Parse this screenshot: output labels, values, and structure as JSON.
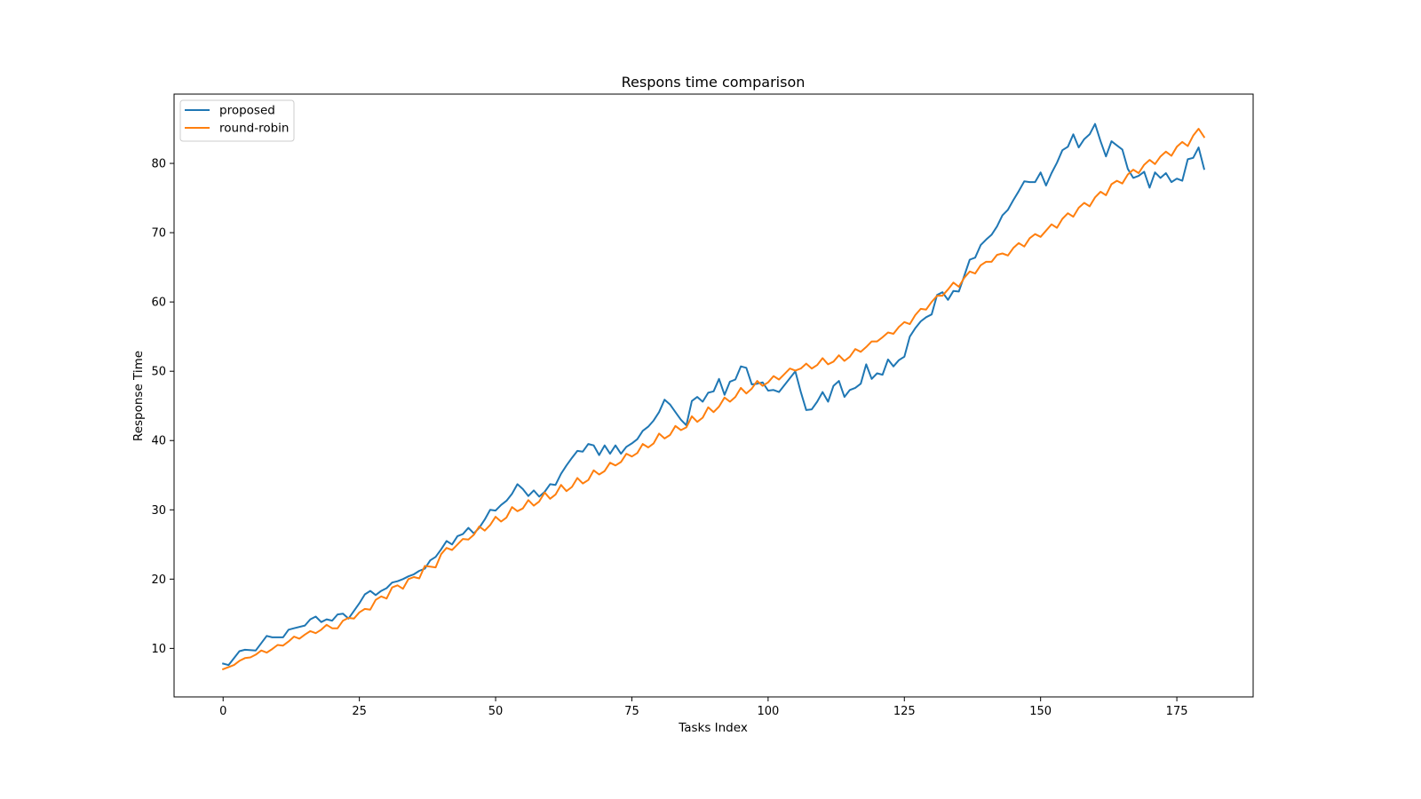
{
  "chart_data": {
    "type": "line",
    "title": "Respons time comparison",
    "xlabel": "Tasks Index",
    "ylabel": "Response Time",
    "xlim": [
      -9,
      189
    ],
    "ylim": [
      3,
      90
    ],
    "xticks": [
      0,
      25,
      50,
      75,
      100,
      125,
      150,
      175
    ],
    "yticks": [
      10,
      20,
      30,
      40,
      50,
      60,
      70,
      80
    ],
    "grid": false,
    "legend": "top-left",
    "series": [
      {
        "name": "proposed",
        "color": "#1f77b4",
        "x": [
          0,
          1,
          3,
          4,
          6,
          8,
          9,
          11,
          12,
          13,
          15,
          16,
          17,
          18,
          19,
          20,
          21,
          22,
          23,
          25,
          26,
          27,
          28,
          29,
          30,
          31,
          32,
          33,
          34,
          35,
          36,
          37,
          38,
          39,
          40,
          41,
          42,
          43,
          44,
          45,
          46,
          47,
          48,
          49,
          50,
          51,
          52,
          53,
          54,
          55,
          56,
          57,
          58,
          59,
          60,
          61,
          62,
          63,
          64,
          65,
          66,
          67,
          68,
          69,
          70,
          71,
          72,
          73,
          74,
          75,
          76,
          77,
          78,
          79,
          80,
          81,
          82,
          83,
          84,
          85,
          86,
          87,
          88,
          89,
          90,
          91,
          92,
          93,
          94,
          95,
          96,
          97,
          98,
          99,
          100,
          101,
          102,
          103,
          104,
          105,
          106,
          107,
          108,
          109,
          110,
          111,
          112,
          113,
          114,
          115,
          116,
          117,
          118,
          119,
          120,
          121,
          122,
          123,
          124,
          125,
          126,
          127,
          128,
          129,
          130,
          131,
          132,
          133,
          134,
          135,
          136,
          137,
          138,
          139,
          140,
          141,
          142,
          143,
          144,
          145,
          146,
          147,
          148,
          149,
          150,
          151,
          152,
          153,
          154,
          155,
          156,
          157,
          158,
          159,
          160,
          161,
          162,
          163,
          164,
          165,
          166,
          167,
          168,
          169,
          170,
          171,
          172,
          173,
          174,
          175,
          176,
          177,
          178,
          179,
          180
        ],
        "values": [
          7.8,
          7.6,
          9.6,
          9.8,
          9.7,
          11.8,
          11.6,
          11.6,
          12.7,
          12.9,
          13.3,
          14.2,
          14.6,
          13.8,
          14.2,
          14.0,
          14.9,
          15.0,
          14.3,
          16.5,
          17.8,
          18.3,
          17.7,
          18.3,
          18.7,
          19.5,
          19.7,
          20.0,
          20.4,
          20.7,
          21.2,
          21.5,
          22.7,
          23.2,
          24.3,
          25.5,
          25.0,
          26.2,
          26.5,
          27.4,
          26.6,
          27.4,
          28.6,
          30.0,
          29.9,
          30.7,
          31.3,
          32.3,
          33.7,
          33.0,
          32.0,
          32.8,
          31.9,
          32.6,
          33.7,
          33.6,
          35.2,
          36.4,
          37.5,
          38.5,
          38.4,
          39.5,
          39.3,
          37.9,
          39.3,
          38.1,
          39.3,
          38.1,
          39.1,
          39.6,
          40.2,
          41.4,
          42.0,
          42.9,
          44.1,
          45.9,
          45.2,
          44.1,
          43.0,
          42.2,
          45.7,
          46.3,
          45.6,
          46.9,
          47.1,
          48.9,
          46.6,
          48.5,
          48.8,
          50.7,
          50.5,
          48.1,
          48.2,
          48.4,
          47.2,
          47.3,
          47.0,
          48.0,
          49.0,
          50.0,
          47.0,
          44.4,
          44.5,
          45.6,
          47.0,
          45.6,
          47.9,
          48.6,
          46.3,
          47.3,
          47.6,
          48.2,
          51.0,
          48.9,
          49.7,
          49.5,
          51.7,
          50.7,
          51.6,
          52.1,
          55.0,
          56.2,
          57.2,
          57.8,
          58.2,
          61.0,
          61.4,
          60.3,
          61.6,
          61.5,
          63.8,
          66.1,
          66.4,
          68.2,
          69.0,
          69.7,
          70.9,
          72.5,
          73.3,
          74.7,
          76.0,
          77.4,
          77.3,
          77.3,
          78.7,
          76.8,
          78.6,
          80.1,
          81.9,
          82.4,
          84.2,
          82.3,
          83.5,
          84.2,
          85.7,
          83.2,
          81.0,
          83.2,
          82.6,
          82.0,
          79.2,
          77.9,
          78.2,
          78.8,
          76.5,
          78.7,
          77.9,
          78.6,
          77.3,
          77.8,
          77.5,
          80.6,
          80.8,
          82.3,
          79.2
        ]
      },
      {
        "name": "round-robin",
        "color": "#ff7f0e",
        "x": [
          0,
          1,
          2,
          3,
          4,
          5,
          6,
          7,
          8,
          9,
          10,
          11,
          12,
          13,
          14,
          15,
          16,
          17,
          18,
          19,
          20,
          21,
          22,
          23,
          24,
          25,
          26,
          27,
          28,
          29,
          30,
          31,
          32,
          33,
          34,
          35,
          36,
          37,
          38,
          39,
          40,
          41,
          42,
          43,
          44,
          45,
          46,
          47,
          48,
          49,
          50,
          51,
          52,
          53,
          54,
          55,
          56,
          57,
          58,
          59,
          60,
          61,
          62,
          63,
          64,
          65,
          66,
          67,
          68,
          69,
          70,
          71,
          72,
          73,
          74,
          75,
          76,
          77,
          78,
          79,
          80,
          81,
          82,
          83,
          84,
          85,
          86,
          87,
          88,
          89,
          90,
          91,
          92,
          93,
          94,
          95,
          96,
          97,
          98,
          99,
          100,
          101,
          102,
          103,
          104,
          105,
          106,
          107,
          108,
          109,
          110,
          111,
          112,
          113,
          114,
          115,
          116,
          117,
          118,
          119,
          120,
          121,
          122,
          123,
          124,
          125,
          126,
          127,
          128,
          129,
          130,
          131,
          132,
          133,
          134,
          135,
          136,
          137,
          138,
          139,
          140,
          141,
          142,
          143,
          144,
          145,
          146,
          147,
          148,
          149,
          150,
          151,
          152,
          153,
          154,
          155,
          156,
          157,
          158,
          159,
          160,
          161,
          162,
          163,
          164,
          165,
          166,
          167,
          168,
          169,
          170,
          171,
          172,
          173,
          174,
          175,
          176,
          177,
          178,
          179,
          180
        ],
        "values": [
          7.0,
          7.3,
          7.6,
          8.2,
          8.6,
          8.7,
          9.1,
          9.7,
          9.4,
          9.9,
          10.5,
          10.4,
          11.0,
          11.7,
          11.4,
          12.0,
          12.5,
          12.2,
          12.7,
          13.4,
          12.9,
          12.9,
          14.0,
          14.4,
          14.3,
          15.2,
          15.7,
          15.6,
          17.0,
          17.5,
          17.2,
          18.8,
          19.1,
          18.6,
          20.0,
          20.3,
          20.1,
          21.9,
          21.8,
          21.7,
          23.6,
          24.5,
          24.2,
          25.0,
          25.8,
          25.7,
          26.4,
          27.6,
          27.0,
          27.8,
          29.0,
          28.3,
          28.9,
          30.4,
          29.8,
          30.2,
          31.4,
          30.6,
          31.2,
          32.5,
          31.6,
          32.2,
          33.6,
          32.7,
          33.3,
          34.6,
          33.8,
          34.3,
          35.7,
          35.1,
          35.6,
          36.8,
          36.4,
          36.9,
          38.1,
          37.7,
          38.2,
          39.5,
          39.0,
          39.6,
          41.0,
          40.3,
          40.8,
          42.1,
          41.5,
          41.9,
          43.5,
          42.7,
          43.3,
          44.8,
          44.1,
          44.9,
          46.2,
          45.6,
          46.3,
          47.6,
          46.8,
          47.5,
          48.6,
          47.9,
          48.4,
          49.3,
          48.8,
          49.6,
          50.4,
          50.1,
          50.4,
          51.1,
          50.4,
          50.9,
          51.9,
          51.0,
          51.4,
          52.3,
          51.5,
          52.1,
          53.2,
          52.8,
          53.5,
          54.3,
          54.3,
          54.9,
          55.6,
          55.4,
          56.4,
          57.1,
          56.8,
          58.1,
          59.0,
          58.9,
          60.0,
          60.9,
          60.9,
          61.8,
          62.8,
          62.2,
          63.5,
          64.4,
          64.1,
          65.3,
          65.8,
          65.8,
          66.8,
          67.0,
          66.7,
          67.8,
          68.5,
          68.0,
          69.2,
          69.8,
          69.4,
          70.3,
          71.2,
          70.7,
          72.0,
          72.8,
          72.3,
          73.6,
          74.3,
          73.8,
          75.1,
          75.9,
          75.4,
          77.0,
          77.5,
          77.1,
          78.4,
          79.1,
          78.6,
          79.8,
          80.5,
          79.9,
          81.0,
          81.7,
          81.1,
          82.4,
          83.1,
          82.5,
          84.0,
          85.0,
          83.8
        ]
      }
    ]
  }
}
